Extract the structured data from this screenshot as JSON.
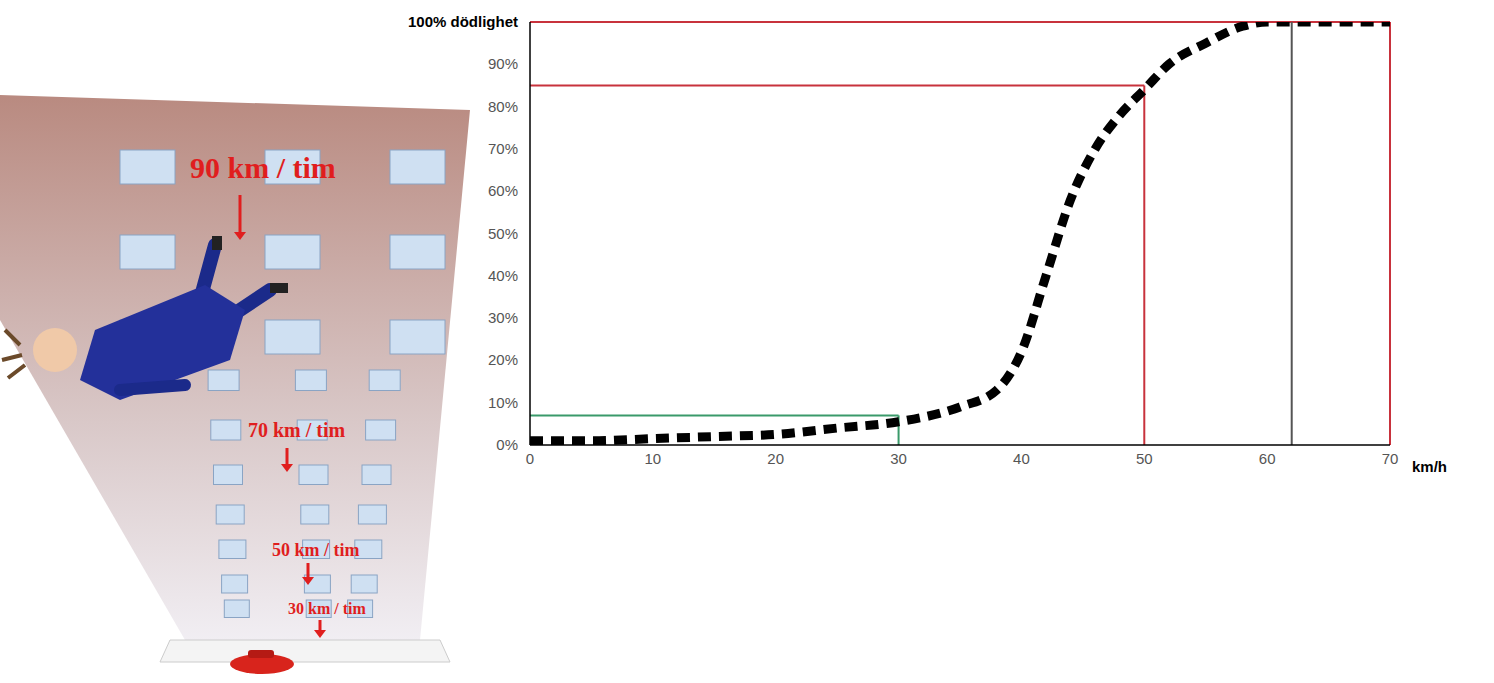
{
  "chart_data": {
    "type": "line",
    "x": [
      0,
      5,
      10,
      15,
      20,
      25,
      30,
      35,
      38,
      40,
      42,
      44,
      46,
      48,
      50,
      52,
      55,
      58,
      60,
      62,
      65,
      70
    ],
    "values": [
      1,
      1,
      1.5,
      2,
      2.5,
      4,
      5.5,
      9,
      13,
      22,
      40,
      58,
      70,
      78,
      84,
      90,
      95,
      99,
      100,
      100,
      100,
      100
    ],
    "color": "#000000",
    "line_style": "dashed",
    "x_label": "km/h",
    "xlim": [
      0,
      70
    ],
    "ylim": [
      0,
      100
    ],
    "xticks": [
      0,
      10,
      20,
      30,
      40,
      50,
      60,
      70
    ],
    "yticks": [
      {
        "value": 0,
        "label": "0%"
      },
      {
        "value": 10,
        "label": "10%"
      },
      {
        "value": 20,
        "label": "20%"
      },
      {
        "value": 30,
        "label": "30%"
      },
      {
        "value": 40,
        "label": "40%"
      },
      {
        "value": 50,
        "label": "50%"
      },
      {
        "value": 60,
        "label": "60%"
      },
      {
        "value": 70,
        "label": "70%"
      },
      {
        "value": 80,
        "label": "80%"
      },
      {
        "value": 90,
        "label": "90%"
      },
      {
        "value": 100,
        "label": "100% dödlighet"
      }
    ],
    "grid": false,
    "reference_lines": [
      {
        "x": 30,
        "y": 7,
        "color": "#3a9a6a"
      },
      {
        "x": 50,
        "y": 85,
        "color": "#c8323c"
      },
      {
        "x": 70,
        "y": 100,
        "color": "#c8323c"
      },
      {
        "x": 62,
        "y": 100,
        "color": "#555555",
        "horizontal": false
      }
    ]
  },
  "illustration": {
    "labels": [
      "90 km / tim",
      "70 km / tim",
      "50 km / tim",
      "30 km / tim"
    ]
  }
}
